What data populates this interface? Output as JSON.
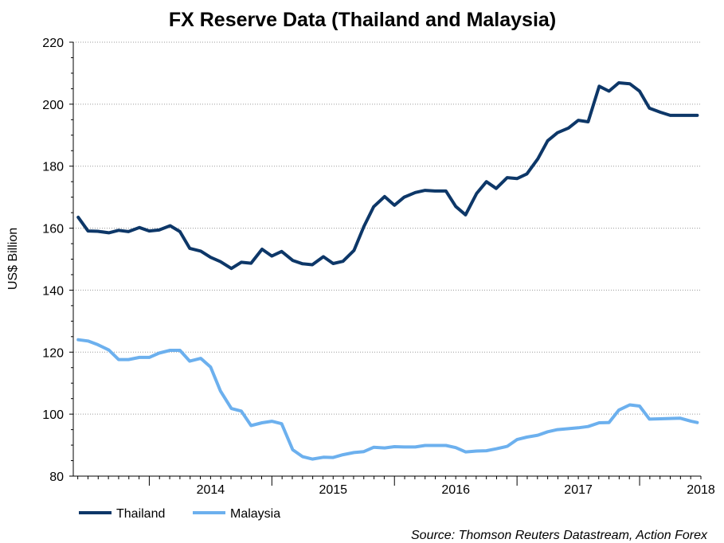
{
  "chart_data": {
    "type": "line",
    "title": "FX Reserve Data (Thailand and Malaysia)",
    "xlabel": "",
    "ylabel": "US$ Billion",
    "ylim": [
      80,
      220
    ],
    "yticks": [
      80,
      100,
      120,
      140,
      160,
      180,
      200,
      220
    ],
    "xlim": [
      2013.38,
      2018.5
    ],
    "xtick_labels": [
      "2014",
      "2015",
      "2016",
      "2017",
      "2018"
    ],
    "x": [
      2013.42,
      2013.5,
      2013.58,
      2013.67,
      2013.75,
      2013.83,
      2013.92,
      2014.0,
      2014.08,
      2014.17,
      2014.25,
      2014.33,
      2014.42,
      2014.5,
      2014.58,
      2014.67,
      2014.75,
      2014.83,
      2014.92,
      2015.0,
      2015.08,
      2015.17,
      2015.25,
      2015.33,
      2015.42,
      2015.5,
      2015.58,
      2015.67,
      2015.75,
      2015.83,
      2015.92,
      2016.0,
      2016.08,
      2016.17,
      2016.25,
      2016.33,
      2016.42,
      2016.5,
      2016.58,
      2016.67,
      2016.75,
      2016.83,
      2016.92,
      2017.0,
      2017.08,
      2017.17,
      2017.25,
      2017.33,
      2017.42,
      2017.5,
      2017.58,
      2017.67,
      2017.75,
      2017.83,
      2017.92,
      2018.0,
      2018.08,
      2018.17,
      2018.25,
      2018.33,
      2018.42,
      2018.47
    ],
    "series": [
      {
        "name": "Thailand",
        "color": "#0d3768",
        "values": [
          163.5,
          159.1,
          159.0,
          158.5,
          159.3,
          158.9,
          160.2,
          159.1,
          159.4,
          160.8,
          158.9,
          153.5,
          152.6,
          150.6,
          149.2,
          147.0,
          149.0,
          148.7,
          153.2,
          151.0,
          152.5,
          149.6,
          148.5,
          148.2,
          150.8,
          148.6,
          149.3,
          152.8,
          160.5,
          166.9,
          170.2,
          167.4,
          170.0,
          171.5,
          172.2,
          172.0,
          172.0,
          167.0,
          164.3,
          171.2,
          175.0,
          172.8,
          176.3,
          176.0,
          177.5,
          182.4,
          188.2,
          190.8,
          192.3,
          194.8,
          194.3,
          205.8,
          204.2,
          206.9,
          206.6,
          204.2,
          198.7,
          197.4,
          196.4,
          196.4,
          196.4,
          196.4
        ]
      },
      {
        "name": "Malaysia",
        "color": "#6cb0ee",
        "values": [
          124.0,
          123.6,
          122.4,
          120.7,
          117.6,
          117.6,
          118.3,
          118.3,
          119.7,
          120.6,
          120.6,
          117.1,
          118.0,
          115.2,
          107.5,
          101.8,
          101.0,
          96.3,
          97.2,
          97.7,
          96.9,
          88.5,
          86.3,
          85.5,
          86.1,
          86.0,
          86.9,
          87.6,
          87.9,
          89.3,
          89.1,
          89.5,
          89.4,
          89.4,
          89.9,
          89.9,
          89.9,
          89.2,
          87.8,
          88.1,
          88.2,
          88.8,
          89.6,
          91.8,
          92.6,
          93.2,
          94.3,
          95.0,
          95.3,
          95.6,
          96.0,
          97.2,
          97.3,
          101.3,
          103.0,
          102.6,
          98.4,
          98.5,
          98.6,
          98.7,
          97.7,
          97.3
        ]
      }
    ],
    "legend": {
      "placement": "bottom-left"
    },
    "source": "Source: Thomson Reuters Datastream, Action Forex"
  }
}
